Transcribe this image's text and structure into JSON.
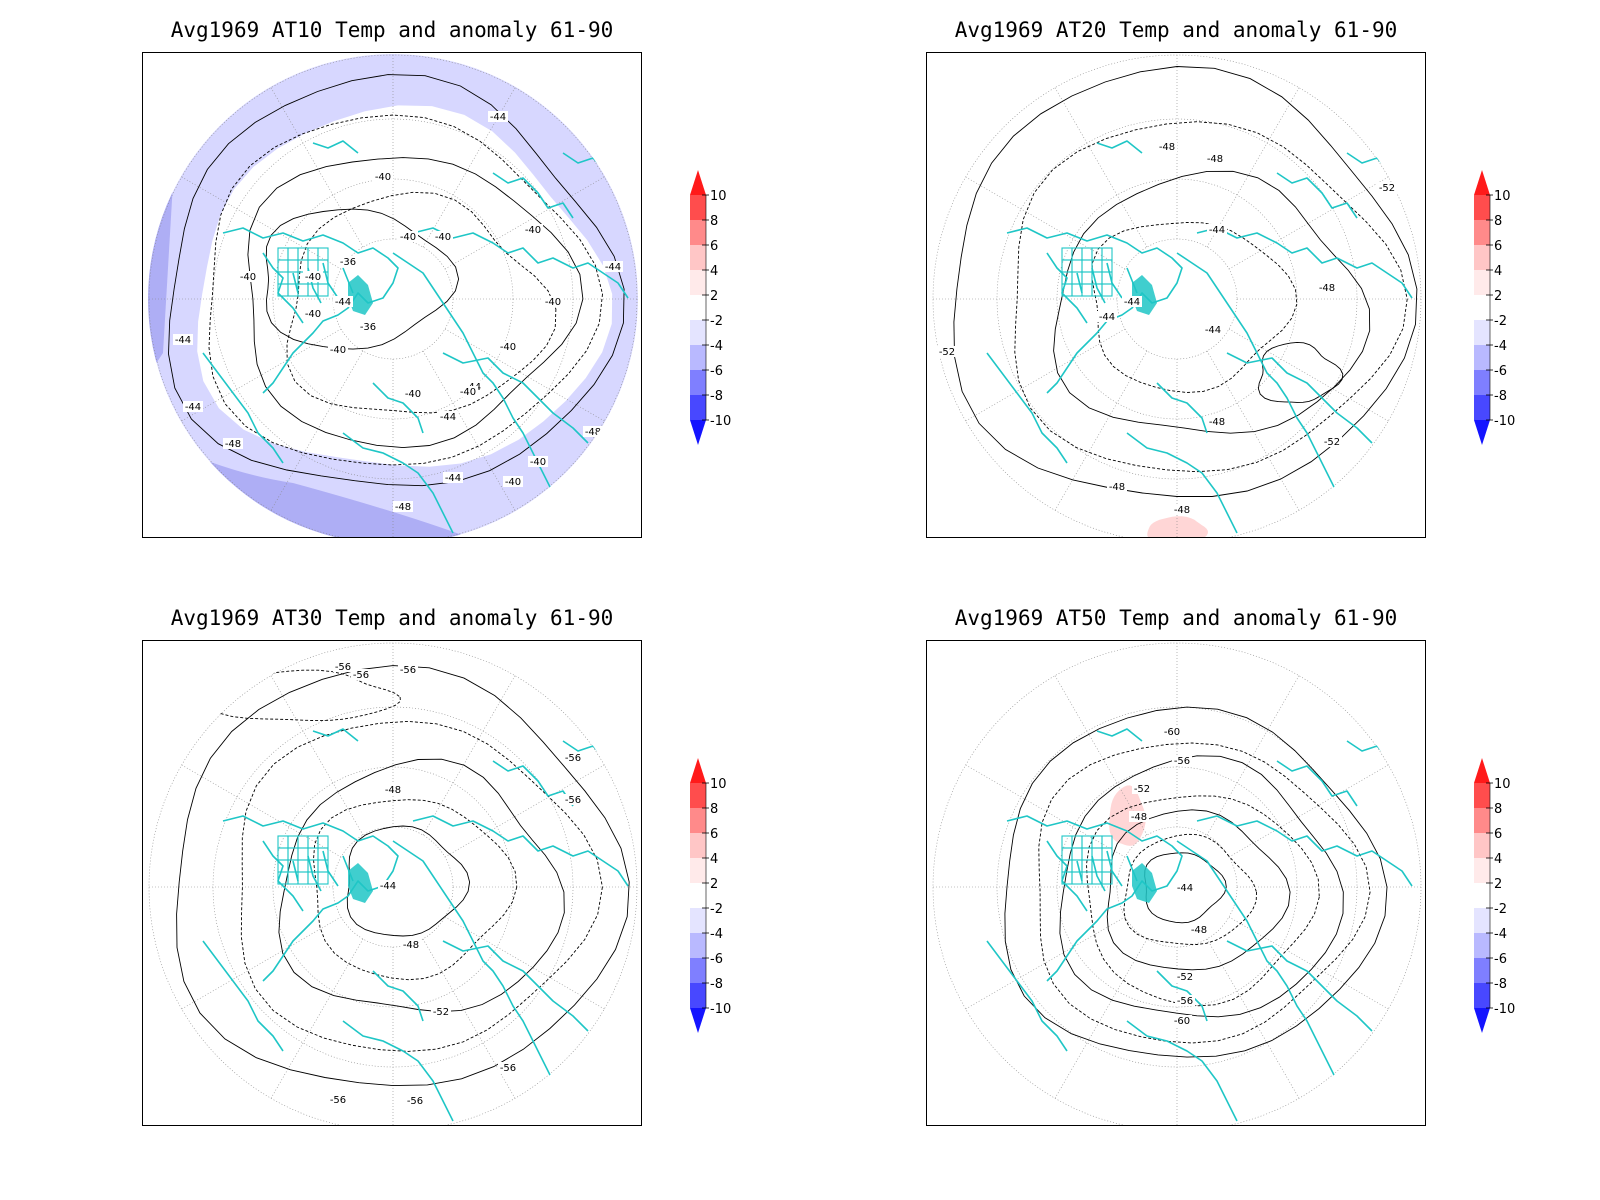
{
  "panels": [
    {
      "title": "Avg1969 AT10 Temp and anomaly 61-90",
      "contour_labels": [
        "-44",
        "-40",
        "-40",
        "-40",
        "-36",
        "-40",
        "-40",
        "-40",
        "-44",
        "-40",
        "-44",
        "-40",
        "-36",
        "-40",
        "-44",
        "-40",
        "-40",
        "-40",
        "-44",
        "-44",
        "-48",
        "-44",
        "-40",
        "-44",
        "-40",
        "-48",
        "-48"
      ]
    },
    {
      "title": "Avg1969 AT20 Temp and anomaly 61-90",
      "contour_labels": [
        "-48",
        "-48",
        "-52",
        "-44",
        "-48",
        "-44",
        "-44",
        "-44",
        "-52",
        "-48",
        "-52",
        "-48",
        "-48"
      ]
    },
    {
      "title": "Avg1969 AT30 Temp and anomaly 61-90",
      "contour_labels": [
        "-56",
        "-56",
        "-56",
        "-56",
        "-56",
        "-48",
        "-44",
        "-48",
        "-52",
        "-56",
        "-56",
        "-56"
      ]
    },
    {
      "title": "Avg1969 AT50 Temp and anomaly 61-90",
      "contour_labels": [
        "-60",
        "-56",
        "-52",
        "-48",
        "-44",
        "-48",
        "-52",
        "-56",
        "-60"
      ]
    }
  ],
  "colorbar": {
    "labels": [
      "10",
      "8",
      "6",
      "4",
      "2",
      "-2",
      "-4",
      "-6",
      "-8",
      "-10"
    ],
    "colors": [
      "#ff1a1a",
      "#ff4d4d",
      "#ff8a8a",
      "#ffc6c6",
      "#ffeaea",
      "#ffffff",
      "#e4e4ff",
      "#b9b9ff",
      "#7f7fff",
      "#4848ff",
      "#1414ff"
    ]
  },
  "colors": {
    "coast": "#1fc6c6",
    "contour": "#000000",
    "neg_anom": "#d7d7ff",
    "neg_anom2": "#aeaef5",
    "pos_anom": "#ffd6d6"
  }
}
